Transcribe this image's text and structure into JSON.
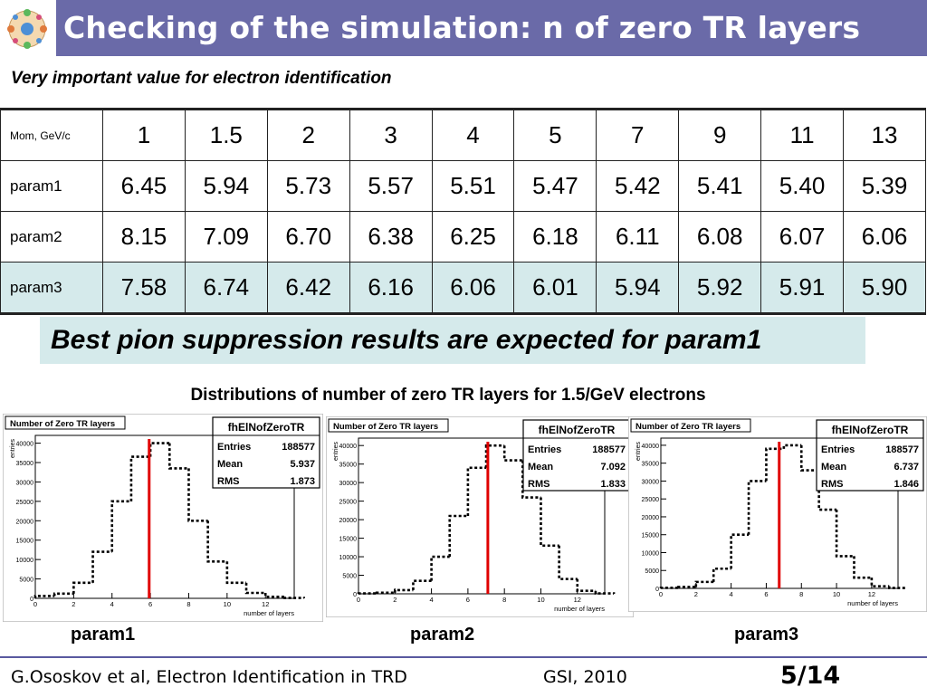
{
  "title": "Checking of the simulation: n of zero TR layers",
  "subtitle": "Very important value for electron identification",
  "table": {
    "header_label": "Mom, GeV/c",
    "momenta": [
      "1",
      "1.5",
      "2",
      "3",
      "4",
      "5",
      "7",
      "9",
      "11",
      "13"
    ],
    "rows": [
      {
        "label": "param1",
        "values": [
          "6.45",
          "5.94",
          "5.73",
          "5.57",
          "5.51",
          "5.47",
          "5.42",
          "5.41",
          "5.40",
          "5.39"
        ]
      },
      {
        "label": "param2",
        "values": [
          "8.15",
          "7.09",
          "6.70",
          "6.38",
          "6.25",
          "6.18",
          "6.11",
          "6.08",
          "6.07",
          "6.06"
        ]
      },
      {
        "label": "param3",
        "values": [
          "7.58",
          "6.74",
          "6.42",
          "6.16",
          "6.06",
          "6.01",
          "5.94",
          "5.92",
          "5.91",
          "5.90"
        ]
      }
    ]
  },
  "callout": "Best pion suppression results are expected for param1",
  "plots_title": "Distributions of number of zero TR layers for 1.5/GeV electrons",
  "colors": {
    "title_bar": "#6a6aa8",
    "highlight": "#d5eaeb",
    "mean_line": "#e00000"
  },
  "plot_common": {
    "hist_title": "Number of Zero TR layers",
    "stat_name": "fhElNofZeroTR",
    "entries_label": "Entries",
    "mean_label": "Mean",
    "rms_label": "RMS",
    "xlabel": "number of layers",
    "ylabel": "entries"
  },
  "chart_data": [
    {
      "type": "bar",
      "caption": "param1",
      "entries": "188577",
      "mean": "5.937",
      "rms": "1.873",
      "mean_value": 5.937,
      "x": [
        0,
        1,
        2,
        3,
        4,
        5,
        6,
        7,
        8,
        9,
        10,
        11,
        12,
        13
      ],
      "values": [
        600,
        1200,
        4000,
        12000,
        25000,
        36500,
        40000,
        33500,
        20000,
        9500,
        4000,
        1400,
        400,
        100
      ],
      "xlim": [
        0,
        13.5
      ],
      "ylim": [
        0,
        42000
      ],
      "xticks": [
        "0",
        "2",
        "4",
        "6",
        "8",
        "10",
        "12"
      ],
      "yticks": [
        "0",
        "5000",
        "10000",
        "15000",
        "20000",
        "25000",
        "30000",
        "35000",
        "40000"
      ]
    },
    {
      "type": "bar",
      "caption": "param2",
      "entries": "188577",
      "mean": "7.092",
      "rms": "1.833",
      "mean_value": 7.092,
      "x": [
        0,
        1,
        2,
        3,
        4,
        5,
        6,
        7,
        8,
        9,
        10,
        11,
        12,
        13
      ],
      "values": [
        100,
        300,
        1000,
        3500,
        10000,
        21000,
        34000,
        40000,
        36000,
        26000,
        13000,
        4000,
        800,
        100
      ],
      "xlim": [
        0,
        13.5
      ],
      "ylim": [
        0,
        42000
      ],
      "xticks": [
        "0",
        "2",
        "4",
        "6",
        "8",
        "10",
        "12"
      ],
      "yticks": [
        "0",
        "5000",
        "10000",
        "15000",
        "20000",
        "25000",
        "30000",
        "35000",
        "40000"
      ]
    },
    {
      "type": "bar",
      "caption": "param3",
      "entries": "188577",
      "mean": "6.737",
      "rms": "1.846",
      "mean_value": 6.737,
      "x": [
        0,
        1,
        2,
        3,
        4,
        5,
        6,
        7,
        8,
        9,
        10,
        11,
        12,
        13
      ],
      "values": [
        150,
        400,
        1800,
        5500,
        15000,
        30000,
        39000,
        40000,
        33000,
        22000,
        9000,
        3000,
        600,
        100
      ],
      "xlim": [
        0,
        13.5
      ],
      "ylim": [
        0,
        42000
      ],
      "xticks": [
        "0",
        "2",
        "4",
        "6",
        "8",
        "10",
        "12"
      ],
      "yticks": [
        "0",
        "5000",
        "10000",
        "15000",
        "20000",
        "25000",
        "30000",
        "35000",
        "40000"
      ]
    }
  ],
  "footer": {
    "author": "G.Ososkov et al, Electron Identification in TRD",
    "venue": "GSI, 2010",
    "page": "5/14"
  }
}
